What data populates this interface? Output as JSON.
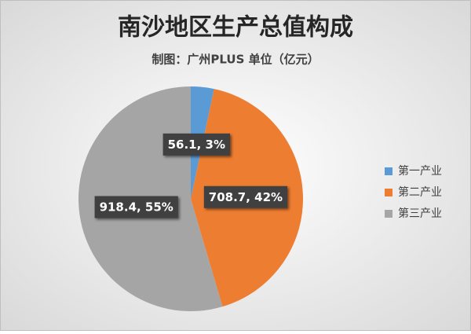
{
  "chart_data": {
    "type": "pie",
    "title": "南沙地区生产总值构成",
    "subtitle": "制图：广州PLUS 单位（亿元）",
    "categories": [
      "第一产业",
      "第二产业",
      "第三产业"
    ],
    "values": [
      56.1,
      708.7,
      918.4
    ],
    "value_labels": [
      "56.1, 3%",
      "708.7, 42%",
      "918.4, 55%"
    ],
    "colors": [
      "#5b9bd5",
      "#ed7d31",
      "#a5a5a5"
    ],
    "legend": "right"
  }
}
